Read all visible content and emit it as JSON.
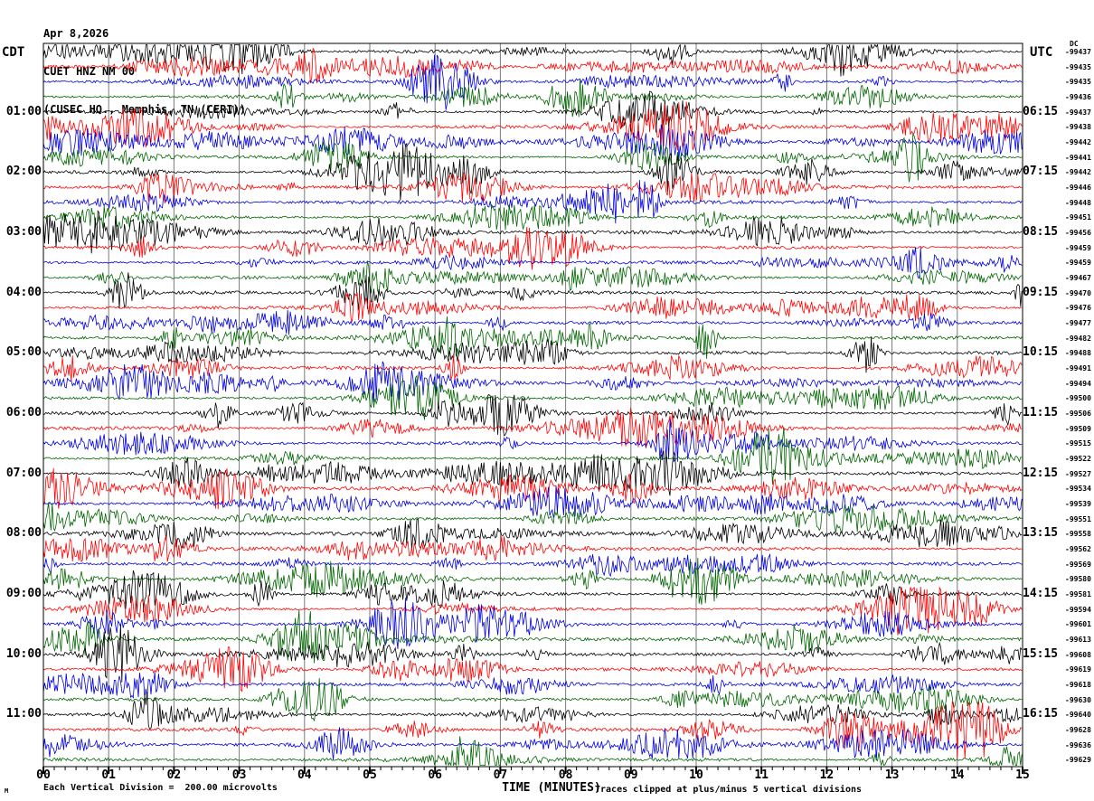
{
  "header": {
    "date": "Apr 8,2026",
    "station": "CUET HNZ NM 00",
    "location": "(CUSEC HQ., Memphis, TN (CERI))"
  },
  "left_axis": {
    "label": "CDT",
    "times": [
      "01:00",
      "02:00",
      "03:00",
      "04:00",
      "05:00",
      "06:00",
      "07:00",
      "08:00",
      "09:00",
      "10:00",
      "11:00"
    ]
  },
  "right_axis": {
    "label": "UTC",
    "dc_label": "DC",
    "times": [
      "06:15",
      "07:15",
      "08:15",
      "09:15",
      "10:15",
      "11:15",
      "12:15",
      "13:15",
      "14:15",
      "15:15",
      "16:15"
    ]
  },
  "trace_offsets": [
    "-99437",
    "-99435",
    "-99435",
    "-99436",
    "-99437",
    "-99438",
    "-99442",
    "-99441",
    "-99442",
    "-99446",
    "-99448",
    "-99451",
    "-99456",
    "-99459",
    "-99459",
    "-99467",
    "-99470",
    "-99476",
    "-99477",
    "-99482",
    "-99488",
    "-99491",
    "-99494",
    "-99500",
    "-99506",
    "-99509",
    "-99515",
    "-99522",
    "-99527",
    "-99534",
    "-99539",
    "-99551",
    "-99558",
    "-99562",
    "-99569",
    "-99580",
    "-99581",
    "-99594",
    "-99601",
    "-99613",
    "-99608",
    "-99619",
    "-99618",
    "-99630",
    "-99640",
    "-99628",
    "-99636",
    "-99629"
  ],
  "x_axis": {
    "label": "TIME (MINUTES)",
    "ticks": [
      "00",
      "01",
      "02",
      "03",
      "04",
      "05",
      "06",
      "07",
      "08",
      "09",
      "10",
      "11",
      "12",
      "13",
      "14",
      "15"
    ]
  },
  "footer": {
    "left_note": "Each Vertical Division =  200.00 microvolts",
    "right_note": "Traces clipped at plus/minus 5 vertical divisions",
    "corner_mark": "M"
  },
  "colors": {
    "trace_cycle": [
      "#000000",
      "#ff0000",
      "#0000dd",
      "#006600"
    ],
    "grid": "#7a7a7a",
    "border": "#000000",
    "background": "#ffffff",
    "text": "#000000"
  },
  "chart_data": {
    "type": "line",
    "subtype": "helicorder_seismogram",
    "title": "CUET HNZ NM 00 (CUSEC HQ., Memphis, TN (CERI)) Apr 8,2026",
    "xlabel": "TIME (MINUTES)",
    "x_range_minutes": [
      0,
      15
    ],
    "x_major_tick_minutes": 1,
    "left_time_zone": "CDT",
    "right_time_zone": "UTC",
    "rows_count": 12,
    "traces_per_row": 4,
    "minutes_per_trace": 15,
    "trace_color_cycle": [
      "black",
      "red",
      "blue",
      "green"
    ],
    "vertical_division_microvolts": 200.0,
    "clip_limit_divisions": 5,
    "rows": [
      {
        "cdt_label": "",
        "utc_label": "",
        "dc_offsets": [
          -99437,
          -99435,
          -99435,
          -99436
        ]
      },
      {
        "cdt_label": "01:00",
        "utc_label": "06:15",
        "dc_offsets": [
          -99437,
          -99438,
          -99442,
          -99441
        ]
      },
      {
        "cdt_label": "02:00",
        "utc_label": "07:15",
        "dc_offsets": [
          -99442,
          -99446,
          -99448,
          -99451
        ]
      },
      {
        "cdt_label": "03:00",
        "utc_label": "08:15",
        "dc_offsets": [
          -99456,
          -99459,
          -99459,
          -99467
        ]
      },
      {
        "cdt_label": "04:00",
        "utc_label": "09:15",
        "dc_offsets": [
          -99470,
          -99476,
          -99477,
          -99482
        ]
      },
      {
        "cdt_label": "05:00",
        "utc_label": "10:15",
        "dc_offsets": [
          -99488,
          -99491,
          -99494,
          -99500
        ]
      },
      {
        "cdt_label": "06:00",
        "utc_label": "11:15",
        "dc_offsets": [
          -99506,
          -99509,
          -99515,
          -99522
        ]
      },
      {
        "cdt_label": "07:00",
        "utc_label": "12:15",
        "dc_offsets": [
          -99527,
          -99534,
          -99539,
          -99551
        ]
      },
      {
        "cdt_label": "08:00",
        "utc_label": "13:15",
        "dc_offsets": [
          -99558,
          -99562,
          -99569,
          -99580
        ]
      },
      {
        "cdt_label": "09:00",
        "utc_label": "14:15",
        "dc_offsets": [
          -99581,
          -99594,
          -99601,
          -99613
        ]
      },
      {
        "cdt_label": "10:00",
        "utc_label": "15:15",
        "dc_offsets": [
          -99608,
          -99619,
          -99618,
          -99630
        ]
      },
      {
        "cdt_label": "11:00",
        "utc_label": "16:15",
        "dc_offsets": [
          -99640,
          -99628,
          -99636,
          -99629
        ]
      }
    ],
    "waveform_note": "continuous unlabeled seismic background noise with intermittent bursts; amplitudes not individually labeled"
  }
}
